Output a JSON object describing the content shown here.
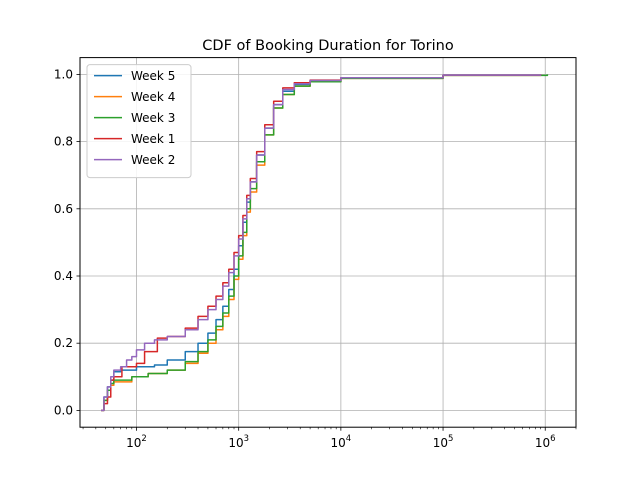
{
  "chart_data": {
    "type": "line",
    "title": "CDF of Booking Duration for Torino",
    "xlabel": "",
    "ylabel": "",
    "xscale": "log",
    "xlim": [
      28,
      2000000
    ],
    "ylim": [
      -0.05,
      1.05
    ],
    "grid": true,
    "legend_position": "upper-left",
    "x_ticks": [
      {
        "value": 100,
        "base": "10",
        "exp": "2"
      },
      {
        "value": 1000,
        "base": "10",
        "exp": "3"
      },
      {
        "value": 10000,
        "base": "10",
        "exp": "4"
      },
      {
        "value": 100000,
        "base": "10",
        "exp": "5"
      },
      {
        "value": 1000000,
        "base": "10",
        "exp": "6"
      }
    ],
    "y_ticks": [
      {
        "value": 0.0,
        "label": "0.0"
      },
      {
        "value": 0.2,
        "label": "0.2"
      },
      {
        "value": 0.4,
        "label": "0.4"
      },
      {
        "value": 0.6,
        "label": "0.6"
      },
      {
        "value": 0.8,
        "label": "0.8"
      },
      {
        "value": 1.0,
        "label": "1.0"
      }
    ],
    "series": [
      {
        "name": "Week 5",
        "color": "#1f77b4",
        "points": [
          [
            45,
            0.0
          ],
          [
            48,
            0.04
          ],
          [
            52,
            0.07
          ],
          [
            56,
            0.09
          ],
          [
            60,
            0.115
          ],
          [
            66,
            0.115
          ],
          [
            70,
            0.12
          ],
          [
            90,
            0.12
          ],
          [
            100,
            0.13
          ],
          [
            150,
            0.135
          ],
          [
            200,
            0.15
          ],
          [
            300,
            0.175
          ],
          [
            400,
            0.2
          ],
          [
            500,
            0.23
          ],
          [
            600,
            0.27
          ],
          [
            700,
            0.31
          ],
          [
            800,
            0.36
          ],
          [
            900,
            0.42
          ],
          [
            1000,
            0.49
          ],
          [
            1100,
            0.56
          ],
          [
            1200,
            0.62
          ],
          [
            1300,
            0.68
          ],
          [
            1500,
            0.76
          ],
          [
            1800,
            0.84
          ],
          [
            2200,
            0.91
          ],
          [
            2700,
            0.95
          ],
          [
            3500,
            0.97
          ],
          [
            5000,
            0.98
          ],
          [
            10000,
            0.99
          ],
          [
            100000,
            0.998
          ],
          [
            900000,
            1.0
          ]
        ]
      },
      {
        "name": "Week 4",
        "color": "#ff7f0e",
        "points": [
          [
            45,
            0.0
          ],
          [
            48,
            0.03
          ],
          [
            52,
            0.06
          ],
          [
            56,
            0.075
          ],
          [
            60,
            0.085
          ],
          [
            80,
            0.085
          ],
          [
            90,
            0.1
          ],
          [
            120,
            0.1
          ],
          [
            130,
            0.11
          ],
          [
            200,
            0.12
          ],
          [
            300,
            0.14
          ],
          [
            400,
            0.17
          ],
          [
            500,
            0.2
          ],
          [
            600,
            0.24
          ],
          [
            700,
            0.28
          ],
          [
            800,
            0.33
          ],
          [
            900,
            0.39
          ],
          [
            1000,
            0.45
          ],
          [
            1100,
            0.52
          ],
          [
            1200,
            0.59
          ],
          [
            1300,
            0.65
          ],
          [
            1500,
            0.73
          ],
          [
            1800,
            0.82
          ],
          [
            2200,
            0.9
          ],
          [
            2700,
            0.94
          ],
          [
            3500,
            0.965
          ],
          [
            5000,
            0.978
          ],
          [
            10000,
            0.988
          ],
          [
            100000,
            0.997
          ],
          [
            900000,
            1.0
          ]
        ]
      },
      {
        "name": "Week 3",
        "color": "#2ca02c",
        "points": [
          [
            45,
            0.0
          ],
          [
            48,
            0.03
          ],
          [
            52,
            0.06
          ],
          [
            56,
            0.08
          ],
          [
            60,
            0.09
          ],
          [
            80,
            0.09
          ],
          [
            90,
            0.1
          ],
          [
            120,
            0.1
          ],
          [
            130,
            0.11
          ],
          [
            200,
            0.12
          ],
          [
            300,
            0.145
          ],
          [
            400,
            0.175
          ],
          [
            500,
            0.21
          ],
          [
            600,
            0.25
          ],
          [
            700,
            0.29
          ],
          [
            800,
            0.34
          ],
          [
            900,
            0.4
          ],
          [
            1000,
            0.46
          ],
          [
            1100,
            0.53
          ],
          [
            1200,
            0.6
          ],
          [
            1300,
            0.66
          ],
          [
            1500,
            0.74
          ],
          [
            1800,
            0.82
          ],
          [
            2200,
            0.9
          ],
          [
            2700,
            0.94
          ],
          [
            3500,
            0.965
          ],
          [
            5000,
            0.978
          ],
          [
            10000,
            0.988
          ],
          [
            100000,
            0.997
          ],
          [
            1050000,
            1.0
          ]
        ]
      },
      {
        "name": "Week 1",
        "color": "#d62728",
        "points": [
          [
            45,
            0.0
          ],
          [
            48,
            0.02
          ],
          [
            52,
            0.04
          ],
          [
            56,
            0.09
          ],
          [
            60,
            0.1
          ],
          [
            70,
            0.1
          ],
          [
            72,
            0.13
          ],
          [
            90,
            0.13
          ],
          [
            100,
            0.14
          ],
          [
            120,
            0.175
          ],
          [
            150,
            0.175
          ],
          [
            160,
            0.215
          ],
          [
            200,
            0.22
          ],
          [
            300,
            0.245
          ],
          [
            400,
            0.28
          ],
          [
            500,
            0.31
          ],
          [
            600,
            0.34
          ],
          [
            700,
            0.38
          ],
          [
            800,
            0.42
          ],
          [
            900,
            0.47
          ],
          [
            1000,
            0.52
          ],
          [
            1100,
            0.58
          ],
          [
            1200,
            0.64
          ],
          [
            1300,
            0.69
          ],
          [
            1500,
            0.77
          ],
          [
            1800,
            0.85
          ],
          [
            2200,
            0.92
          ],
          [
            2700,
            0.96
          ],
          [
            3500,
            0.975
          ],
          [
            5000,
            0.983
          ],
          [
            10000,
            0.99
          ],
          [
            100000,
            0.998
          ],
          [
            900000,
            1.0
          ]
        ]
      },
      {
        "name": "Week 2",
        "color": "#9467bd",
        "points": [
          [
            45,
            0.0
          ],
          [
            48,
            0.04
          ],
          [
            52,
            0.07
          ],
          [
            56,
            0.1
          ],
          [
            60,
            0.12
          ],
          [
            70,
            0.13
          ],
          [
            80,
            0.15
          ],
          [
            90,
            0.16
          ],
          [
            100,
            0.18
          ],
          [
            120,
            0.2
          ],
          [
            150,
            0.21
          ],
          [
            200,
            0.22
          ],
          [
            300,
            0.24
          ],
          [
            400,
            0.27
          ],
          [
            500,
            0.3
          ],
          [
            600,
            0.33
          ],
          [
            700,
            0.37
          ],
          [
            800,
            0.41
          ],
          [
            900,
            0.46
          ],
          [
            1000,
            0.51
          ],
          [
            1100,
            0.57
          ],
          [
            1200,
            0.63
          ],
          [
            1300,
            0.68
          ],
          [
            1500,
            0.76
          ],
          [
            1800,
            0.84
          ],
          [
            2200,
            0.91
          ],
          [
            2700,
            0.955
          ],
          [
            3500,
            0.972
          ],
          [
            5000,
            0.982
          ],
          [
            10000,
            0.99
          ],
          [
            100000,
            0.998
          ],
          [
            900000,
            1.0
          ]
        ]
      }
    ]
  }
}
